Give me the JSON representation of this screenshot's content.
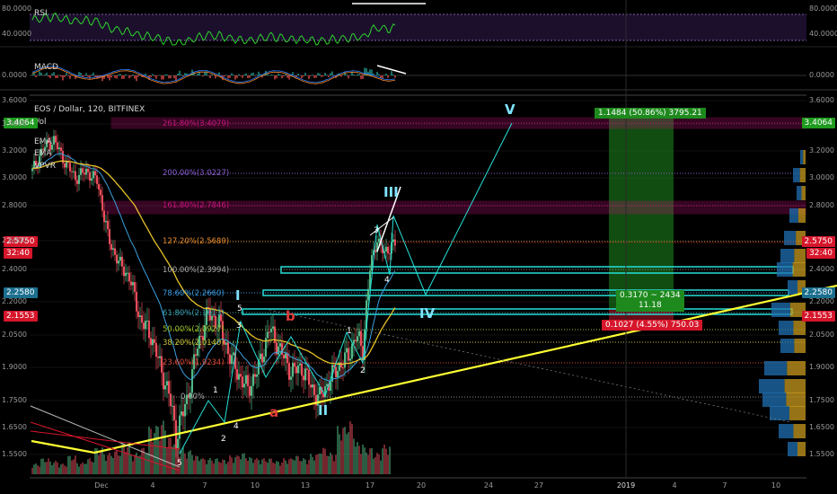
{
  "header": {
    "symbol_line": "EOS / Dollar, 120, BITFINEX",
    "indicators": [
      "Vol",
      "EMA",
      "EMA",
      "VPVR"
    ]
  },
  "rsi": {
    "label": "RSI",
    "ticks": [
      "80.0000",
      "40.0000"
    ]
  },
  "macd": {
    "label": "MACD",
    "ticks": [
      "0.0000"
    ]
  },
  "price_axis": {
    "ticks": [
      "3.6000",
      "3.4000",
      "3.2000",
      "3.0000",
      "2.8000",
      "2.6000",
      "2.4000",
      "2.2000",
      "2.0500",
      "1.9000",
      "1.7500",
      "1.6500",
      "1.5500"
    ],
    "left_tags": {
      "top": "3.4064",
      "current": "2.5750",
      "countdown": "32:40",
      "mid": "2.2580",
      "low": "2.1553"
    },
    "right_tags": {
      "top": "3.4064",
      "current": "2.5750",
      "countdown": "32:40",
      "mid": "2.2580",
      "low": "2.1553"
    }
  },
  "x_axis": {
    "labels": [
      "Dec",
      "4",
      "7",
      "10",
      "13",
      "17",
      "20",
      "24",
      "27",
      "2019",
      "4",
      "7",
      "10"
    ]
  },
  "fib_levels": [
    "261.80%(3.4079)",
    "200.00%(3.0227)",
    "161.80%(2.7846)",
    "127.20%(2.5689)",
    "100.00%(2.3994)",
    "78.60%(2.2660)",
    "61.80%(2.1613)",
    "50.00%(2.0927)",
    "38.20%(2.0140)",
    "23.60%(1.9234)",
    "0.00%"
  ],
  "elliott_waves": {
    "major": [
      "V",
      "III",
      "IV",
      "I",
      "II"
    ],
    "corrective": [
      "a",
      "b"
    ],
    "minor": [
      "1",
      "2",
      "3",
      "4",
      "5",
      "1",
      "2",
      "3",
      "4",
      "5"
    ]
  },
  "measure_boxes": {
    "upper": "1.1484 (50.86%) 3795.21",
    "middle_line1": "0.3170 ~ 2434",
    "middle_line2": "11.18",
    "lower": "0.1027 (4.55%) 750.03"
  },
  "colors": {
    "background": "#000000",
    "candle_up": "#53b987",
    "candle_down": "#eb4d5c",
    "rsi_line": "#2bd52b",
    "trendline": "#ffff33",
    "ema_yellow": "#e6c229",
    "channel_cyan": "#25e0d8",
    "target_magenta": "#c0157a",
    "wave_label": "#7fe3ff",
    "profit_green": "#1f8a1f",
    "loss_red": "#d6162b"
  },
  "chart_data": {
    "type": "candlestick",
    "title": "EOS / Dollar, 120, BITFINEX",
    "xlabel": "",
    "ylabel": "",
    "ylim": [
      1.5,
      3.6
    ],
    "x_labels": [
      "Dec",
      "4",
      "7",
      "10",
      "13",
      "17",
      "20",
      "24",
      "27",
      "2019",
      "4",
      "7",
      "10"
    ],
    "key_prices": {
      "current": 2.575,
      "target_wave_V": 3.4064,
      "level_2_2580": 2.258,
      "level_2_1553": 2.1553
    },
    "fibonacci": [
      {
        "level": "261.80%",
        "price": 3.4079
      },
      {
        "level": "200.00%",
        "price": 3.0227
      },
      {
        "level": "161.80%",
        "price": 2.7846
      },
      {
        "level": "127.20%",
        "price": 2.5689
      },
      {
        "level": "100.00%",
        "price": 2.3994
      },
      {
        "level": "78.60%",
        "price": 2.266
      },
      {
        "level": "61.80%",
        "price": 2.1613
      },
      {
        "level": "50.00%",
        "price": 2.0927
      },
      {
        "level": "38.20%",
        "price": 2.014
      },
      {
        "level": "23.60%",
        "price": 1.9234
      },
      {
        "level": "0.00%",
        "price": 1.77
      }
    ],
    "price_path": [
      [
        0,
        3.05
      ],
      [
        6,
        3.22
      ],
      [
        12,
        3.28
      ],
      [
        18,
        3.12
      ],
      [
        24,
        3.0
      ],
      [
        30,
        3.05
      ],
      [
        36,
        2.98
      ],
      [
        42,
        2.62
      ],
      [
        48,
        2.45
      ],
      [
        54,
        2.35
      ],
      [
        60,
        2.12
      ],
      [
        66,
        2.05
      ],
      [
        72,
        1.88
      ],
      [
        76,
        1.78
      ],
      [
        80,
        1.62
      ],
      [
        86,
        1.75
      ],
      [
        92,
        2.0
      ],
      [
        98,
        2.15
      ],
      [
        104,
        2.1
      ],
      [
        110,
        1.95
      ],
      [
        116,
        1.85
      ],
      [
        120,
        1.8
      ],
      [
        126,
        1.9
      ],
      [
        132,
        2.08
      ],
      [
        138,
        1.98
      ],
      [
        144,
        1.88
      ],
      [
        150,
        1.9
      ],
      [
        156,
        1.8
      ],
      [
        160,
        1.76
      ],
      [
        166,
        1.85
      ],
      [
        172,
        1.92
      ],
      [
        176,
        1.95
      ],
      [
        180,
        2.05
      ],
      [
        184,
        1.98
      ],
      [
        188,
        2.4
      ],
      [
        192,
        2.62
      ],
      [
        196,
        2.5
      ],
      [
        200,
        2.58
      ],
      [
        203,
        2.575
      ]
    ],
    "volume_path": [
      0.2,
      0.3,
      0.25,
      0.2,
      0.35,
      0.22,
      0.3,
      0.5,
      0.4,
      0.45,
      0.6,
      0.4,
      0.5,
      0.9,
      1.0,
      0.7,
      0.5,
      0.45,
      0.35,
      0.3,
      0.3,
      0.28,
      0.35,
      0.4,
      0.32,
      0.3,
      0.3,
      0.25,
      0.3,
      0.35,
      0.3,
      0.38,
      0.5,
      0.4,
      0.9,
      1.0,
      0.6,
      0.5,
      0.4,
      0.55
    ]
  }
}
